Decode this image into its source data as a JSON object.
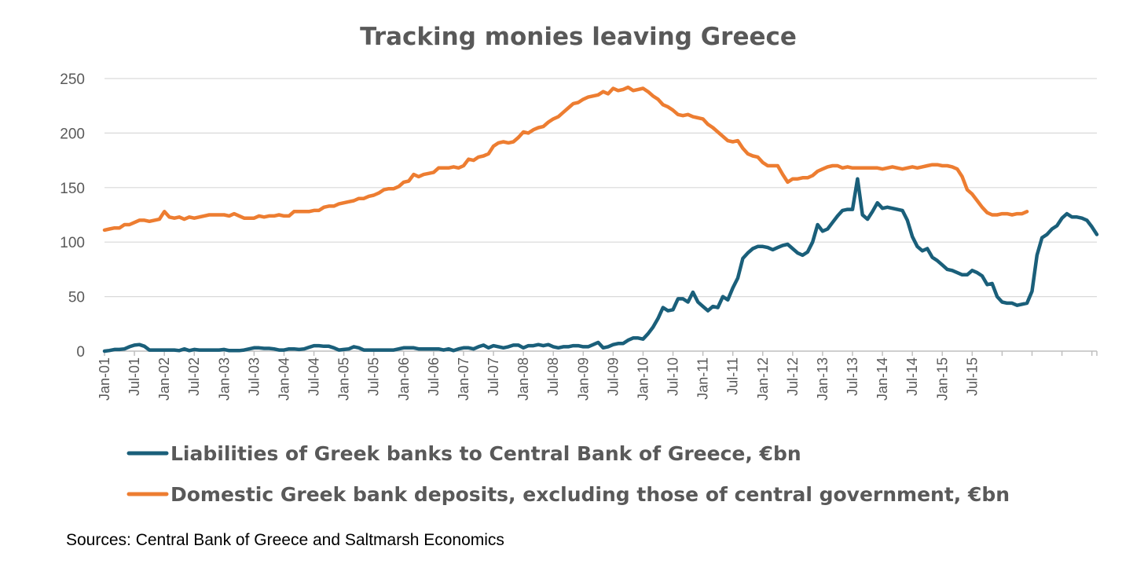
{
  "chart_data": {
    "type": "line",
    "title": "Tracking monies leaving Greece",
    "xlabel": "",
    "ylabel": "",
    "ylim": [
      0,
      250
    ],
    "yticks": [
      0,
      50,
      100,
      150,
      200,
      250
    ],
    "grid": true,
    "legend_position": "bottom",
    "start": "2001-01",
    "x_tick_labels": [
      "Jan-01",
      "Jul-01",
      "Jan-02",
      "Jul-02",
      "Jan-03",
      "Jul-03",
      "Jan-04",
      "Jul-04",
      "Jan-05",
      "Jul-05",
      "Jan-06",
      "Jul-06",
      "Jan-07",
      "Jul-07",
      "Jan-08",
      "Jul-08",
      "Jan-09",
      "Jul-09",
      "Jan-10",
      "Jul-10",
      "Jan-11",
      "Jul-11",
      "Jan-12",
      "Jul-12",
      "Jan-13",
      "Jul-13",
      "Jan-14",
      "Jul-14",
      "Jan-15",
      "Jul-15"
    ],
    "series": [
      {
        "name": "Liabilities of Greek banks to Central Bank of Greece, €bn",
        "color": "#1a5f7a",
        "values": [
          0,
          0.6,
          1.5,
          1.5,
          2,
          4,
          5.5,
          6,
          4.5,
          1,
          1,
          1,
          1,
          1,
          1,
          0.5,
          2,
          0.5,
          1.5,
          1,
          1,
          1,
          1,
          1,
          1.5,
          0.5,
          0.5,
          0.5,
          1,
          2,
          3,
          3,
          2.5,
          2.5,
          2,
          1,
          1,
          2,
          2,
          1.5,
          2,
          3.5,
          5,
          5,
          4.5,
          4.5,
          3,
          1,
          1.5,
          2,
          4,
          3,
          1,
          1,
          1,
          1,
          1,
          1,
          1,
          2,
          3,
          3,
          3,
          2,
          2,
          2,
          2,
          2,
          1,
          2,
          0.5,
          2,
          3,
          3,
          2,
          4,
          5.5,
          3,
          5,
          4,
          3,
          4,
          5.5,
          5.5,
          3,
          5,
          5,
          6,
          5,
          6,
          4,
          3,
          4,
          4,
          5,
          5,
          4,
          4,
          6,
          8,
          3,
          4,
          6,
          7,
          7,
          10,
          12,
          12,
          11,
          16,
          22,
          30,
          40,
          37,
          38,
          48,
          48,
          45,
          54,
          45,
          41,
          37,
          41,
          40,
          50,
          47,
          58,
          67,
          85,
          90,
          94,
          96,
          96,
          95,
          93,
          95,
          97,
          98,
          94,
          90,
          88,
          91,
          100,
          116,
          110,
          112,
          118,
          124,
          129,
          130,
          130,
          158,
          125,
          121,
          128,
          136,
          131,
          132,
          131,
          130,
          129,
          120,
          105,
          96,
          92,
          94,
          86,
          83,
          79,
          75,
          74,
          72,
          70,
          70,
          74,
          72,
          69,
          61,
          62,
          50,
          45,
          44,
          44,
          42,
          43,
          44,
          55,
          88,
          104,
          107,
          112,
          115,
          122,
          126,
          123,
          123,
          122,
          120,
          114,
          107
        ]
      },
      {
        "name": "Domestic Greek bank deposits, excluding those of central government, €bn",
        "color": "#ed7d31",
        "values": [
          111,
          112,
          113,
          113,
          116,
          116,
          118,
          120,
          120,
          119,
          120,
          121,
          128,
          123,
          122,
          123,
          121,
          123,
          122,
          123,
          124,
          125,
          125,
          125,
          125,
          124,
          126,
          124,
          122,
          122,
          122,
          124,
          123,
          124,
          124,
          125,
          124,
          124,
          128,
          128,
          128,
          128,
          129,
          129,
          132,
          133,
          133,
          135,
          136,
          137,
          138,
          140,
          140,
          142,
          143,
          145,
          148,
          149,
          149,
          151,
          155,
          156,
          162,
          160,
          162,
          163,
          164,
          168,
          168,
          168,
          169,
          168,
          170,
          176,
          175,
          178,
          179,
          181,
          188,
          191,
          192,
          191,
          192,
          196,
          201,
          200,
          203,
          205,
          206,
          210,
          213,
          215,
          219,
          223,
          227,
          228,
          231,
          233,
          234,
          235,
          238,
          236,
          241,
          239,
          240,
          242,
          239,
          240,
          241,
          238,
          234,
          231,
          226,
          224,
          221,
          217,
          216,
          217,
          215,
          214,
          213,
          208,
          205,
          201,
          197,
          193,
          192,
          193,
          186,
          181,
          179,
          178,
          173,
          170,
          170,
          170,
          162,
          155,
          158,
          158,
          159,
          159,
          161,
          165,
          167,
          169,
          170,
          170,
          168,
          169,
          168,
          168,
          168,
          168,
          168,
          168,
          167,
          168,
          169,
          168,
          167,
          168,
          169,
          168,
          169,
          170,
          171,
          171,
          170,
          170,
          169,
          167,
          160,
          148,
          144,
          138,
          132,
          127,
          125,
          125,
          126,
          126,
          125,
          126,
          126,
          128
        ]
      }
    ]
  },
  "source_text": "Sources: Central Bank of Greece and Saltmarsh Economics"
}
